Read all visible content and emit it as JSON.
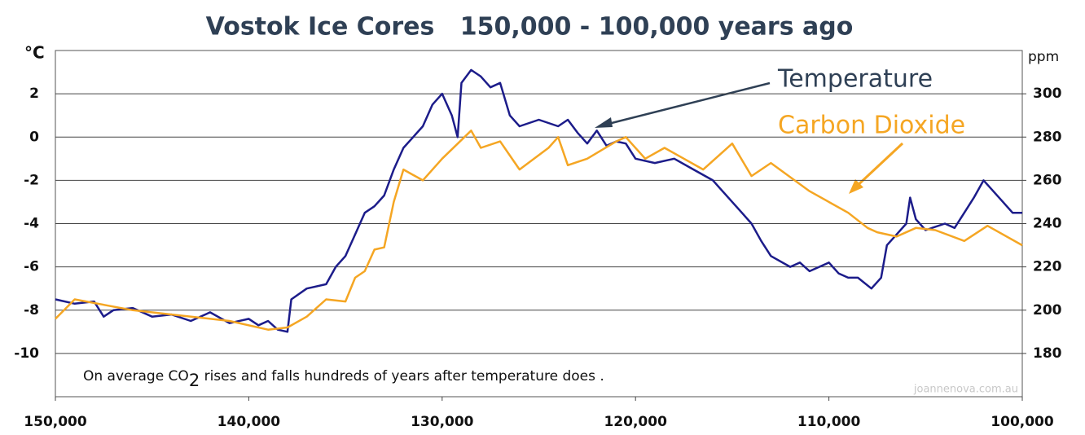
{
  "chart_data": {
    "type": "line",
    "title": "Vostok Ice Cores   150,000 - 100,000 years ago",
    "y_label": "°C",
    "y2_label": "ppm",
    "annotations": [
      "Temperature",
      "Carbon Dioxide"
    ],
    "note": [
      "On average CO",
      "2",
      " rises and falls hundreds of years after temperature does ."
    ],
    "watermark": "joannenova.com.au",
    "xlim": [
      150000,
      100000
    ],
    "xticks": [
      {
        "value": 150000,
        "label": "150,000"
      },
      {
        "value": 140000,
        "label": "140,000"
      },
      {
        "value": 130000,
        "label": "130,000"
      },
      {
        "value": 120000,
        "label": "120,000"
      },
      {
        "value": 110000,
        "label": "110,000"
      },
      {
        "value": 100000,
        "label": "100,000"
      }
    ],
    "ylim": [
      -12,
      4
    ],
    "yticks": [
      -10,
      -8,
      -6,
      -4,
      -2,
      0,
      2
    ],
    "y2lim": [
      160,
      320
    ],
    "y2ticks": [
      180,
      200,
      220,
      240,
      260,
      280,
      300
    ],
    "grid": true,
    "series": [
      {
        "name": "Temperature",
        "color": "#1c1c8a",
        "x": [
          150000,
          149000,
          148000,
          147500,
          147000,
          146000,
          145000,
          144000,
          143000,
          142000,
          141000,
          140000,
          139500,
          139000,
          138500,
          138000,
          137800,
          137000,
          136000,
          135500,
          135000,
          134500,
          134000,
          133500,
          133000,
          132500,
          132000,
          131500,
          131000,
          130500,
          130000,
          129500,
          129200,
          129000,
          128500,
          128000,
          127500,
          127000,
          126500,
          126000,
          125000,
          124000,
          123500,
          123000,
          122500,
          122000,
          121500,
          121000,
          120500,
          120000,
          119000,
          118000,
          117000,
          116000,
          115500,
          115000,
          114500,
          114000,
          113500,
          113000,
          112000,
          111500,
          111000,
          110000,
          109500,
          109000,
          108500,
          107800,
          107300,
          107000,
          106500,
          106000,
          105800,
          105500,
          105000,
          104000,
          103500,
          103000,
          102500,
          102000,
          101500,
          101000,
          100500,
          100000
        ],
        "values": [
          -7.5,
          -7.7,
          -7.6,
          -8.3,
          -8.0,
          -7.9,
          -8.3,
          -8.2,
          -8.5,
          -8.1,
          -8.6,
          -8.4,
          -8.7,
          -8.5,
          -8.9,
          -9.0,
          -7.5,
          -7.0,
          -6.8,
          -6.0,
          -5.5,
          -4.5,
          -3.5,
          -3.2,
          -2.7,
          -1.5,
          -0.5,
          0.0,
          0.5,
          1.5,
          2.0,
          1.0,
          0.0,
          2.5,
          3.1,
          2.8,
          2.3,
          2.5,
          1.0,
          0.5,
          0.8,
          0.5,
          0.8,
          0.2,
          -0.3,
          0.3,
          -0.4,
          -0.2,
          -0.3,
          -1.0,
          -1.2,
          -1.0,
          -1.5,
          -2.0,
          -2.5,
          -3.0,
          -3.5,
          -4.0,
          -4.8,
          -5.5,
          -6.0,
          -5.8,
          -6.2,
          -5.8,
          -6.3,
          -6.5,
          -6.5,
          -7.0,
          -6.5,
          -5.0,
          -4.5,
          -4.0,
          -2.8,
          -3.8,
          -4.3,
          -4.0,
          -4.2,
          -3.5,
          -2.8,
          -2.0,
          -2.5,
          -3.0,
          -3.5,
          -3.5
        ]
      },
      {
        "name": "Carbon Dioxide",
        "color": "#f5a623",
        "axis": "y2",
        "x": [
          150000,
          149000,
          146000,
          141000,
          139000,
          138000,
          137000,
          136000,
          135000,
          134500,
          134000,
          133500,
          133000,
          132500,
          132000,
          131000,
          130000,
          128500,
          128000,
          127000,
          126000,
          124500,
          124000,
          123500,
          122500,
          121000,
          120500,
          119500,
          118500,
          117500,
          116500,
          115000,
          114000,
          113000,
          111000,
          109000,
          108000,
          107500,
          106500,
          105500,
          104500,
          103000,
          101800,
          100000
        ],
        "values": [
          196,
          205,
          200,
          195,
          191,
          192,
          197,
          205,
          204,
          215,
          218,
          228,
          229,
          250,
          265,
          260,
          270,
          283,
          275,
          278,
          265,
          275,
          280,
          267,
          270,
          278,
          280,
          270,
          275,
          270,
          265,
          277,
          262,
          268,
          255,
          245,
          238,
          236,
          234,
          238,
          237,
          232,
          239,
          230
        ]
      }
    ]
  }
}
